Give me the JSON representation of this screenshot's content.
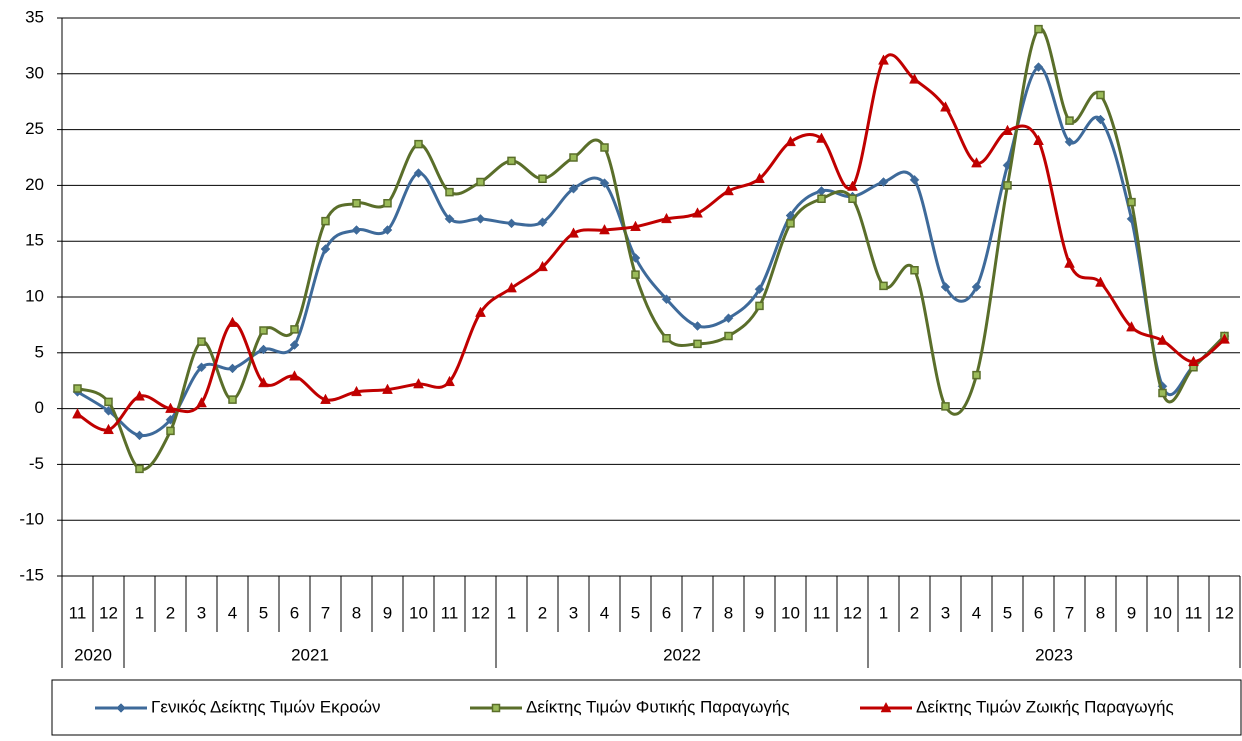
{
  "chart_data": {
    "type": "line",
    "categories": [
      "11",
      "12",
      "1",
      "2",
      "3",
      "4",
      "5",
      "6",
      "7",
      "8",
      "9",
      "10",
      "11",
      "12",
      "1",
      "2",
      "3",
      "4",
      "5",
      "6",
      "7",
      "8",
      "9",
      "10",
      "11",
      "12",
      "1",
      "2",
      "3",
      "4",
      "5",
      "6",
      "7",
      "8",
      "9",
      "10",
      "11",
      "12"
    ],
    "year_labels": [
      "2020",
      "2021",
      "2022",
      "2023"
    ],
    "ylim": [
      -15,
      35
    ],
    "yticks": [
      -15,
      -10,
      -5,
      0,
      5,
      10,
      15,
      20,
      25,
      30,
      35
    ],
    "grid": true,
    "series": [
      {
        "name": "Γενικός Δείκτης Τιμών Εκροών",
        "color": "#3e6a9a",
        "marker": "diamond",
        "values": [
          1.5,
          -0.2,
          -2.4,
          -1.0,
          3.7,
          3.6,
          5.3,
          5.7,
          14.3,
          16.0,
          16.0,
          21.1,
          17.0,
          17.0,
          16.6,
          16.7,
          19.7,
          20.2,
          13.5,
          9.8,
          7.4,
          8.1,
          10.7,
          17.3,
          19.5,
          19.0,
          20.3,
          20.5,
          10.9,
          10.9,
          21.8,
          30.6,
          23.9,
          25.9,
          17.0,
          2.0,
          3.8,
          6.5
        ]
      },
      {
        "name": "Δείκτης Τιμών Φυτικής Παραγωγής",
        "color": "#5a6e2a",
        "marker": "square",
        "values": [
          1.8,
          0.6,
          -5.4,
          -2.0,
          6.0,
          0.8,
          7.0,
          7.1,
          16.8,
          18.4,
          18.4,
          23.7,
          19.4,
          20.3,
          22.2,
          20.6,
          22.5,
          23.4,
          12.0,
          6.3,
          5.8,
          6.5,
          9.2,
          16.6,
          18.8,
          18.8,
          11.0,
          12.4,
          0.2,
          3.0,
          20.0,
          34.0,
          25.8,
          28.1,
          18.5,
          1.4,
          3.7,
          6.5
        ]
      },
      {
        "name": "Δείκτης Τιμών Ζωικής Παραγωγής",
        "color": "#c00000",
        "marker": "triangle",
        "values": [
          -0.5,
          -1.9,
          1.1,
          0.0,
          0.5,
          7.7,
          2.3,
          2.9,
          0.8,
          1.5,
          1.7,
          2.2,
          2.4,
          8.6,
          10.8,
          12.7,
          15.7,
          16.0,
          16.3,
          17.0,
          17.5,
          19.5,
          20.6,
          23.9,
          24.2,
          19.9,
          31.2,
          29.5,
          27.0,
          22.0,
          24.9,
          24.0,
          13.0,
          11.3,
          7.3,
          6.1,
          4.2,
          6.2
        ]
      }
    ]
  }
}
